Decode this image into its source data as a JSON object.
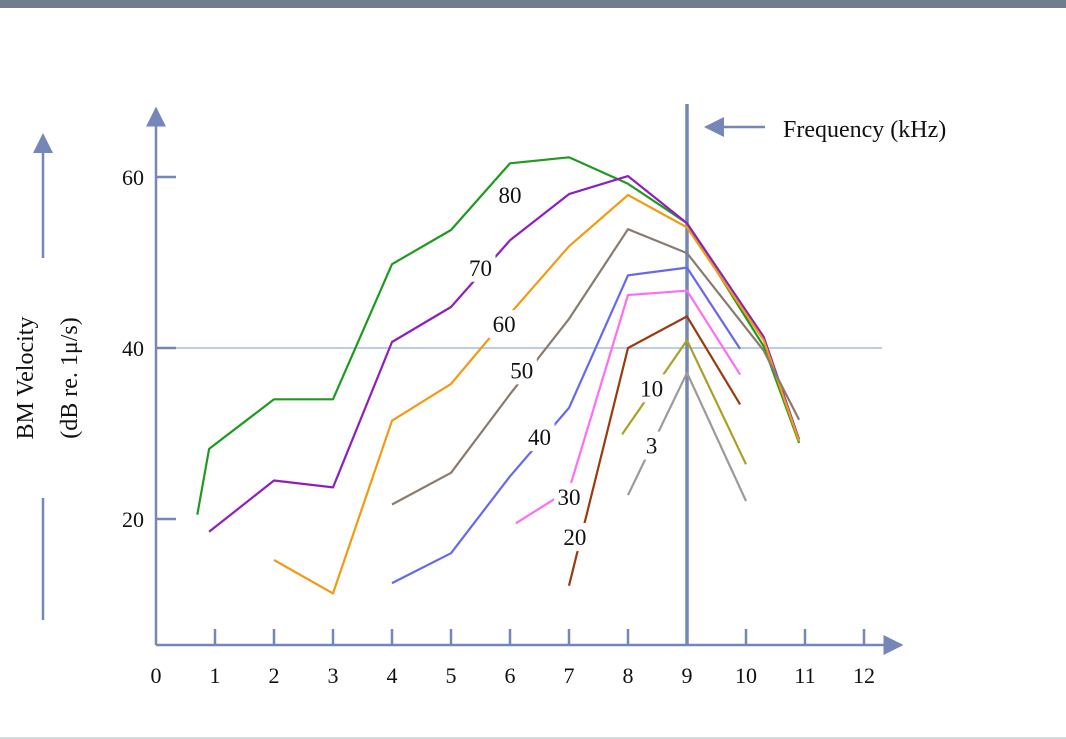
{
  "chart_data": {
    "type": "line",
    "ylabel_line1": "BM Velocity",
    "ylabel_line2": "(dB re. 1μ/s)",
    "xlabel": "Frequency (kHz)",
    "xlim": [
      0,
      12.5
    ],
    "ylim": [
      5,
      68
    ],
    "x_ticks": [
      0,
      1,
      2,
      3,
      4,
      5,
      6,
      7,
      8,
      9,
      10,
      11,
      12
    ],
    "y_ticks": [
      20,
      40,
      60
    ],
    "reference_lines": {
      "horizontal_y": 40,
      "vertical_x": 9
    },
    "series": [
      {
        "name": "80",
        "color": "#1f9a1f",
        "points": [
          [
            0.7,
            20.5
          ],
          [
            0.9,
            28.2
          ],
          [
            2.0,
            34.0
          ],
          [
            3.0,
            34.0
          ],
          [
            4.0,
            49.8
          ],
          [
            5.0,
            53.8
          ],
          [
            6.0,
            61.6
          ],
          [
            7.0,
            62.3
          ],
          [
            8.0,
            59.2
          ],
          [
            9.0,
            54.6
          ],
          [
            10.3,
            40.2
          ],
          [
            10.9,
            28.9
          ]
        ]
      },
      {
        "name": "70",
        "color": "#8e1fbf",
        "points": [
          [
            0.9,
            18.5
          ],
          [
            2.0,
            24.5
          ],
          [
            3.0,
            23.7
          ],
          [
            4.0,
            40.7
          ],
          [
            5.0,
            44.8
          ],
          [
            6.0,
            52.6
          ],
          [
            7.0,
            58.0
          ],
          [
            8.0,
            60.1
          ],
          [
            9.0,
            54.6
          ],
          [
            10.3,
            41.3
          ],
          [
            10.9,
            29.3
          ]
        ]
      },
      {
        "name": "60",
        "color": "#f29a12",
        "points": [
          [
            2.0,
            15.2
          ],
          [
            3.0,
            11.3
          ],
          [
            4.0,
            31.5
          ],
          [
            5.0,
            35.8
          ],
          [
            6.0,
            44.0
          ],
          [
            7.0,
            51.9
          ],
          [
            8.0,
            57.9
          ],
          [
            9.0,
            54.1
          ],
          [
            10.3,
            40.9
          ],
          [
            10.9,
            29.1
          ]
        ]
      },
      {
        "name": "50",
        "color": "#8a7b6e",
        "points": [
          [
            4.0,
            21.7
          ],
          [
            5.0,
            25.4
          ],
          [
            6.0,
            34.6
          ],
          [
            7.0,
            43.4
          ],
          [
            8.0,
            53.9
          ],
          [
            9.0,
            51.1
          ],
          [
            10.3,
            39.7
          ],
          [
            10.9,
            31.6
          ]
        ]
      },
      {
        "name": "40",
        "color": "#6668ee",
        "points": [
          [
            4.0,
            12.5
          ],
          [
            5.0,
            16.0
          ],
          [
            6.0,
            25.0
          ],
          [
            7.0,
            33.0
          ],
          [
            8.0,
            48.5
          ],
          [
            9.0,
            49.4
          ],
          [
            9.9,
            39.9
          ]
        ]
      },
      {
        "name": "30",
        "color": "#ff6ef2",
        "points": [
          [
            6.1,
            19.5
          ],
          [
            7.0,
            23.4
          ],
          [
            8.0,
            46.2
          ],
          [
            9.0,
            46.7
          ],
          [
            9.9,
            36.9
          ]
        ]
      },
      {
        "name": "20",
        "color": "#9b3a0c",
        "points": [
          [
            7.0,
            12.2
          ],
          [
            8.0,
            40.0
          ],
          [
            9.0,
            43.7
          ],
          [
            9.9,
            33.4
          ]
        ]
      },
      {
        "name": "10",
        "color": "#a9a125",
        "points": [
          [
            7.9,
            29.9
          ],
          [
            9.0,
            40.9
          ],
          [
            10.0,
            26.4
          ]
        ]
      },
      {
        "name": "3",
        "color": "#9b9b9b",
        "points": [
          [
            8.0,
            22.8
          ],
          [
            9.0,
            37.1
          ],
          [
            10.0,
            22.1
          ]
        ]
      }
    ]
  }
}
